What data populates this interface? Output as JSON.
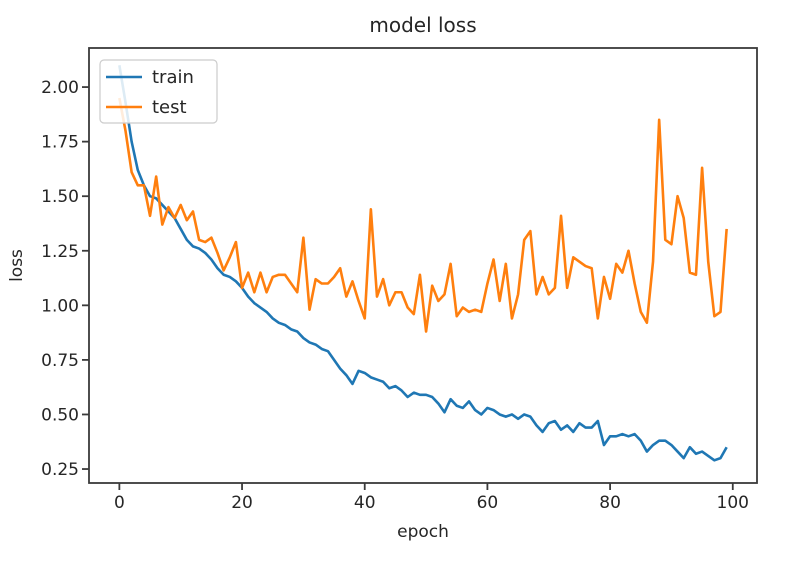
{
  "chart_data": {
    "type": "line",
    "title": "model loss",
    "xlabel": "epoch",
    "ylabel": "loss",
    "grid": false,
    "legend_position": "upper left",
    "xlim": [
      -4.95,
      103.95
    ],
    "ylim": [
      0.186,
      2.179
    ],
    "xticks": [
      0,
      20,
      40,
      60,
      80,
      100
    ],
    "xtick_labels": [
      "0",
      "20",
      "40",
      "60",
      "80",
      "100"
    ],
    "yticks": [
      0.25,
      0.5,
      0.75,
      1.0,
      1.25,
      1.5,
      1.75,
      2.0
    ],
    "ytick_labels": [
      "0.25",
      "0.50",
      "0.75",
      "1.00",
      "1.25",
      "1.50",
      "1.75",
      "2.00"
    ],
    "x": [
      0,
      1,
      2,
      3,
      4,
      5,
      6,
      7,
      8,
      9,
      10,
      11,
      12,
      13,
      14,
      15,
      16,
      17,
      18,
      19,
      20,
      21,
      22,
      23,
      24,
      25,
      26,
      27,
      28,
      29,
      30,
      31,
      32,
      33,
      34,
      35,
      36,
      37,
      38,
      39,
      40,
      41,
      42,
      43,
      44,
      45,
      46,
      47,
      48,
      49,
      50,
      51,
      52,
      53,
      54,
      55,
      56,
      57,
      58,
      59,
      60,
      61,
      62,
      63,
      64,
      65,
      66,
      67,
      68,
      69,
      70,
      71,
      72,
      73,
      74,
      75,
      76,
      77,
      78,
      79,
      80,
      81,
      82,
      83,
      84,
      85,
      86,
      87,
      88,
      89,
      90,
      91,
      92,
      93,
      94,
      95,
      96,
      97,
      98,
      99
    ],
    "series": [
      {
        "name": "train",
        "color": "#1f77b4",
        "values": [
          2.1,
          1.93,
          1.75,
          1.62,
          1.55,
          1.5,
          1.49,
          1.46,
          1.43,
          1.4,
          1.35,
          1.3,
          1.27,
          1.26,
          1.24,
          1.21,
          1.17,
          1.14,
          1.13,
          1.11,
          1.08,
          1.04,
          1.01,
          0.99,
          0.97,
          0.94,
          0.92,
          0.91,
          0.89,
          0.88,
          0.85,
          0.83,
          0.82,
          0.8,
          0.79,
          0.75,
          0.71,
          0.68,
          0.64,
          0.7,
          0.69,
          0.67,
          0.66,
          0.65,
          0.62,
          0.63,
          0.61,
          0.58,
          0.6,
          0.59,
          0.59,
          0.58,
          0.55,
          0.51,
          0.57,
          0.54,
          0.53,
          0.56,
          0.52,
          0.5,
          0.53,
          0.52,
          0.5,
          0.49,
          0.5,
          0.48,
          0.5,
          0.49,
          0.45,
          0.42,
          0.46,
          0.47,
          0.43,
          0.45,
          0.42,
          0.46,
          0.44,
          0.44,
          0.47,
          0.36,
          0.4,
          0.4,
          0.41,
          0.4,
          0.41,
          0.38,
          0.33,
          0.36,
          0.38,
          0.38,
          0.36,
          0.33,
          0.3,
          0.35,
          0.32,
          0.33,
          0.31,
          0.29,
          0.3,
          0.35
        ]
      },
      {
        "name": "test",
        "color": "#ff7f0e",
        "values": [
          1.95,
          1.8,
          1.61,
          1.55,
          1.55,
          1.41,
          1.59,
          1.37,
          1.45,
          1.4,
          1.46,
          1.39,
          1.43,
          1.3,
          1.29,
          1.31,
          1.24,
          1.16,
          1.22,
          1.29,
          1.08,
          1.15,
          1.06,
          1.15,
          1.06,
          1.13,
          1.14,
          1.14,
          1.1,
          1.06,
          1.31,
          0.98,
          1.12,
          1.1,
          1.1,
          1.13,
          1.17,
          1.04,
          1.11,
          1.02,
          0.94,
          1.44,
          1.04,
          1.12,
          1.0,
          1.06,
          1.06,
          0.99,
          0.96,
          1.14,
          0.88,
          1.09,
          1.02,
          1.05,
          1.19,
          0.95,
          0.99,
          0.97,
          0.98,
          0.97,
          1.1,
          1.21,
          1.02,
          1.19,
          0.94,
          1.05,
          1.3,
          1.34,
          1.05,
          1.13,
          1.05,
          1.08,
          1.41,
          1.08,
          1.22,
          1.2,
          1.18,
          1.17,
          0.94,
          1.13,
          1.03,
          1.19,
          1.15,
          1.25,
          1.1,
          0.97,
          0.92,
          1.2,
          1.85,
          1.3,
          1.28,
          1.5,
          1.4,
          1.15,
          1.14,
          1.63,
          1.2,
          0.95,
          0.97,
          1.35
        ]
      }
    ],
    "legend_entries": [
      "train",
      "test"
    ]
  },
  "colors": {
    "background": "#ffffff",
    "spine": "#3a3a3a",
    "text": "#262626",
    "legend_border": "#cccccc",
    "legend_background": "rgba(255,255,255,0.85)",
    "train": "#1f77b4",
    "test": "#ff7f0e"
  }
}
